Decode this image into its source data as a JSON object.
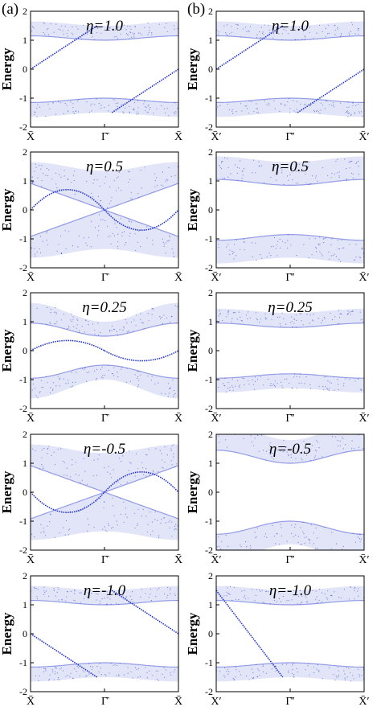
{
  "figure": {
    "column_labels": [
      "(a)",
      "(b)"
    ],
    "band_color": "#2233cc",
    "frame_color": "#000000"
  },
  "chart_data": [
    {
      "type": "scatter",
      "column": 0,
      "row": 0,
      "eta_label": "η=1.0",
      "ylabel": "Energy",
      "ylim": [
        -2,
        2
      ],
      "yticks": [
        2,
        1,
        0,
        -1,
        -2
      ],
      "xticks": [
        "X̄",
        "Γ̄",
        "X̄"
      ],
      "band_shape": "gapped-flat",
      "band_gap": 1.0,
      "band_width": 0.5,
      "edge_states": [
        {
          "from": [
            0.0,
            0.0
          ],
          "to": [
            0.45,
            1.5
          ]
        },
        {
          "from": [
            0.55,
            -1.5
          ],
          "to": [
            1.0,
            0.0
          ]
        }
      ]
    },
    {
      "type": "scatter",
      "column": 1,
      "row": 0,
      "eta_label": "η=1.0",
      "ylabel": "Energy",
      "ylim": [
        -2,
        2
      ],
      "yticks": [
        2,
        1,
        0,
        -1,
        -2
      ],
      "xticks": [
        "X̄′",
        "Γ̄′",
        "X̄′"
      ],
      "band_shape": "gapped-flat",
      "band_gap": 1.0,
      "band_width": 0.5,
      "edge_states": [
        {
          "from": [
            0.0,
            0.0
          ],
          "to": [
            0.45,
            1.5
          ]
        },
        {
          "from": [
            0.55,
            -1.5
          ],
          "to": [
            1.0,
            0.0
          ]
        }
      ]
    },
    {
      "type": "scatter",
      "column": 0,
      "row": 1,
      "eta_label": "η=0.5",
      "ylabel": "Energy",
      "ylim": [
        -2,
        2
      ],
      "yticks": [
        2,
        1,
        0,
        -1,
        -2
      ],
      "xticks": [
        "X̄",
        "Γ̄",
        "X̄"
      ],
      "band_shape": "dirac-cone",
      "band_gap": 0.0,
      "band_width": 0.9,
      "edge_states": [
        {
          "from": [
            0.0,
            0.0
          ],
          "peak": [
            0.25,
            0.7
          ],
          "to": [
            0.5,
            0.0
          ]
        },
        {
          "from": [
            0.5,
            0.0
          ],
          "peak": [
            0.75,
            -0.7
          ],
          "to": [
            1.0,
            0.0
          ]
        }
      ]
    },
    {
      "type": "scatter",
      "column": 1,
      "row": 1,
      "eta_label": "η=0.5",
      "ylabel": "Energy",
      "ylim": [
        -2,
        2
      ],
      "yticks": [
        2,
        1,
        0,
        -1,
        -2
      ],
      "xticks": [
        "X̄′",
        "Γ̄′",
        "X̄′"
      ],
      "band_shape": "gapped-hump",
      "band_gap": 1.0,
      "band_width": 0.8,
      "edge_states": []
    },
    {
      "type": "scatter",
      "column": 0,
      "row": 2,
      "eta_label": "η=0.25",
      "ylabel": "Energy",
      "ylim": [
        -2,
        2
      ],
      "yticks": [
        2,
        1,
        0,
        -1,
        -2
      ],
      "xticks": [
        "X̄",
        "Γ̄",
        "X̄"
      ],
      "band_shape": "gapped-valley",
      "band_gap": 0.5,
      "band_width": 0.5,
      "edge_states": [
        {
          "from": [
            0.0,
            0.0
          ],
          "peak": [
            0.25,
            0.35
          ],
          "to": [
            0.5,
            0.0
          ]
        },
        {
          "from": [
            0.5,
            0.0
          ],
          "peak": [
            0.75,
            -0.35
          ],
          "to": [
            1.0,
            0.0
          ]
        }
      ]
    },
    {
      "type": "scatter",
      "column": 1,
      "row": 2,
      "eta_label": "η=0.25",
      "ylabel": "Energy",
      "ylim": [
        -2,
        2
      ],
      "yticks": [
        2,
        1,
        0,
        -1,
        -2
      ],
      "xticks": [
        "X̄′",
        "Γ̄′",
        "X̄′"
      ],
      "band_shape": "gapped-flat",
      "band_gap": 0.8,
      "band_width": 0.5,
      "edge_states": []
    },
    {
      "type": "scatter",
      "column": 0,
      "row": 3,
      "eta_label": "η=-0.5",
      "ylabel": "Energy",
      "ylim": [
        -2,
        2
      ],
      "yticks": [
        2,
        1,
        0,
        -1,
        -2
      ],
      "xticks": [
        "X̄",
        "Γ̄",
        "X̄"
      ],
      "band_shape": "dirac-cone",
      "band_gap": 0.0,
      "band_width": 0.9,
      "edge_states": [
        {
          "from": [
            0.0,
            0.0
          ],
          "peak": [
            0.25,
            -0.7
          ],
          "to": [
            0.5,
            0.0
          ]
        },
        {
          "from": [
            0.5,
            0.0
          ],
          "peak": [
            0.75,
            0.7
          ],
          "to": [
            1.0,
            0.0
          ]
        }
      ]
    },
    {
      "type": "scatter",
      "column": 1,
      "row": 3,
      "eta_label": "η=-0.5",
      "ylabel": "Energy",
      "ylim": [
        -2,
        2
      ],
      "yticks": [
        2,
        1,
        0,
        -1,
        -2
      ],
      "xticks": [
        "X̄′",
        "Γ̄′",
        "X̄′"
      ],
      "band_shape": "gapped-valley",
      "band_gap": 1.0,
      "band_width": 0.8,
      "edge_states": []
    },
    {
      "type": "scatter",
      "column": 0,
      "row": 4,
      "eta_label": "η=-1.0",
      "ylabel": "Energy",
      "ylim": [
        -2,
        2
      ],
      "yticks": [
        2,
        1,
        0,
        -1,
        -2
      ],
      "xticks": [
        "X̄",
        "Γ̄",
        "X̄"
      ],
      "band_shape": "gapped-flat",
      "band_gap": 1.0,
      "band_width": 0.5,
      "edge_states": [
        {
          "from": [
            0.0,
            0.0
          ],
          "to": [
            0.45,
            -1.5
          ]
        },
        {
          "from": [
            0.55,
            1.5
          ],
          "to": [
            1.0,
            0.0
          ]
        }
      ]
    },
    {
      "type": "scatter",
      "column": 1,
      "row": 4,
      "eta_label": "η=-1.0",
      "ylabel": "Energy",
      "ylim": [
        -2,
        2
      ],
      "yticks": [
        2,
        1,
        0,
        -1,
        -2
      ],
      "xticks": [
        "X′",
        "Γ̄′",
        "X̄′"
      ],
      "band_shape": "gapped-flat",
      "band_gap": 1.0,
      "band_width": 0.5,
      "edge_states": [
        {
          "from": [
            0.0,
            1.5
          ],
          "to": [
            0.45,
            -1.5
          ]
        }
      ]
    }
  ]
}
